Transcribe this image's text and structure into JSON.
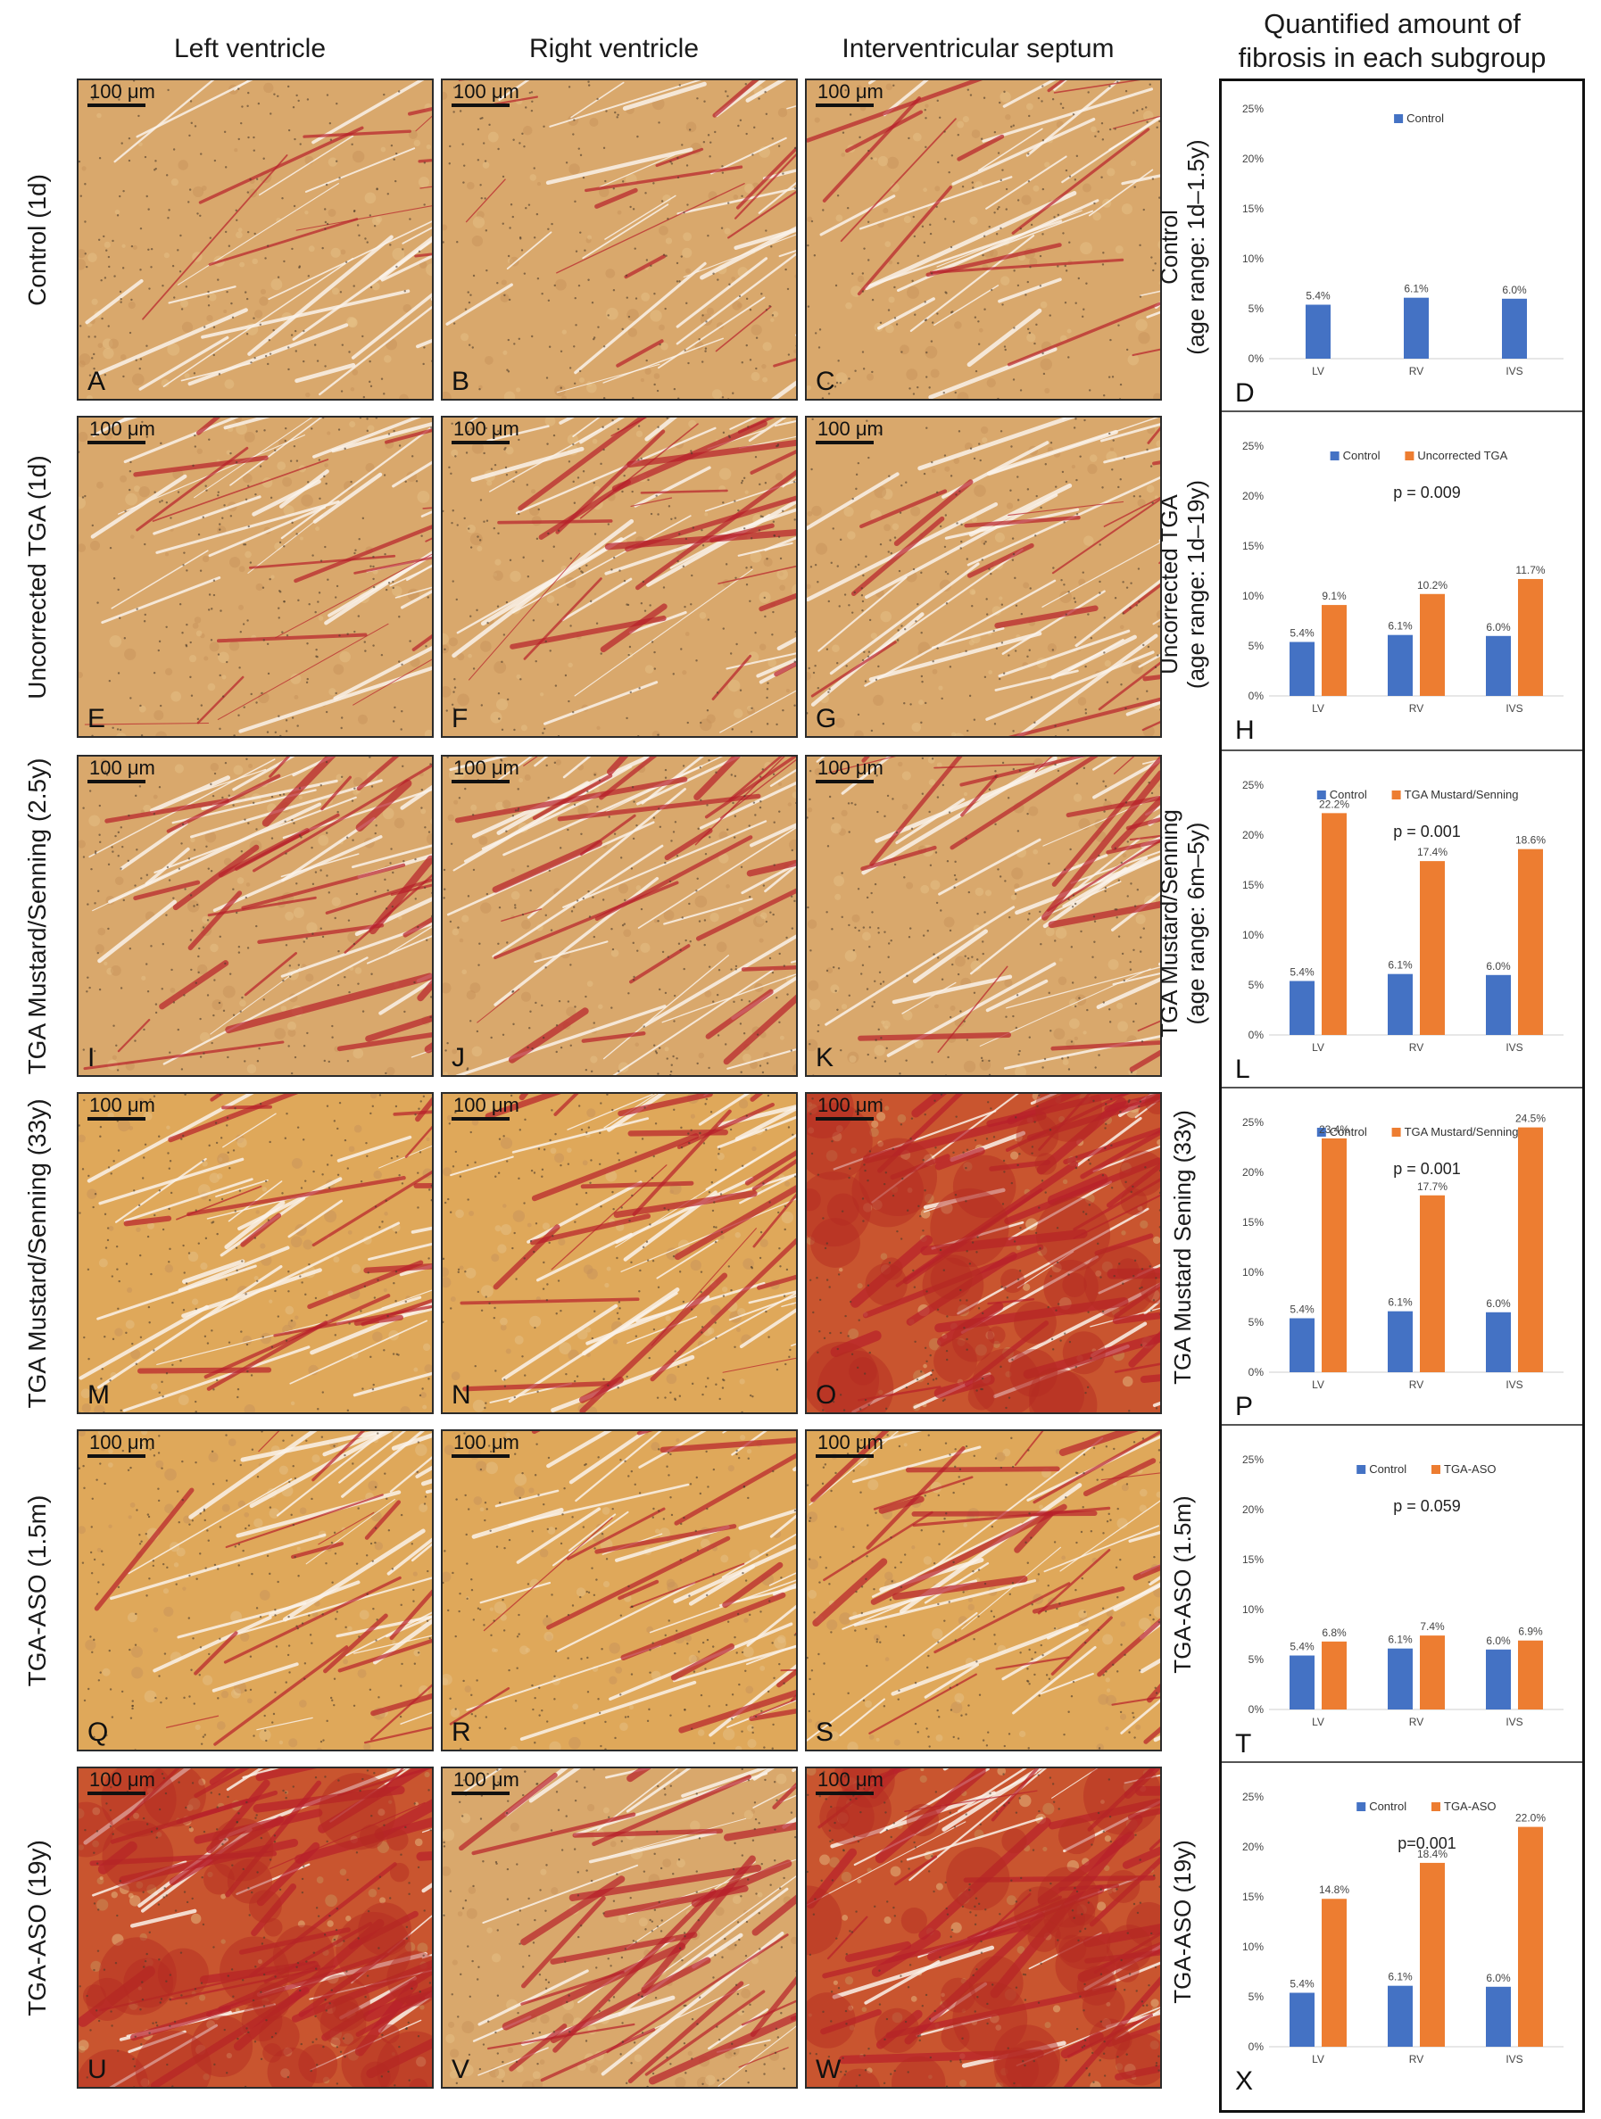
{
  "column_headers": [
    "Left ventricle",
    "Right ventricle",
    "Interventricular septum"
  ],
  "right_header": [
    "Quantified amount of",
    "fibrosis in each subgroup"
  ],
  "scale_bar": "100 μm",
  "rows": [
    {
      "label": "Control (1d)",
      "panels": [
        "A",
        "B",
        "C"
      ],
      "chart_label": [
        "Control",
        "(age range: 1d–1.5y)"
      ],
      "chart_panel": "D"
    },
    {
      "label": "Uncorrected TGA (1d)",
      "panels": [
        "E",
        "F",
        "G"
      ],
      "chart_label": [
        "Uncorrected TGA",
        "(age range: 1d–19y)"
      ],
      "chart_panel": "H"
    },
    {
      "label": "TGA Mustard/Senning (2.5y)",
      "panels": [
        "I",
        "J",
        "K"
      ],
      "chart_label": [
        "TGA Mustard/Senning",
        "(age range: 6m–5y)"
      ],
      "chart_panel": "L"
    },
    {
      "label": "TGA Mustard/Senning (33y)",
      "panels": [
        "M",
        "N",
        "O"
      ],
      "chart_label": [
        "TGA Mustard Sening (33y)"
      ],
      "chart_panel": "P"
    },
    {
      "label": "TGA-ASO (1.5m)",
      "panels": [
        "Q",
        "R",
        "S"
      ],
      "chart_label": [
        "TGA-ASO (1.5m)"
      ],
      "chart_panel": "T"
    },
    {
      "label": "TGA-ASO (19y)",
      "panels": [
        "U",
        "V",
        "W"
      ],
      "chart_label": [
        "TGA-ASO (19y)"
      ],
      "chart_panel": "X"
    }
  ],
  "colors": {
    "control": "#4472C4",
    "comparison": "#ED7D31",
    "tissue": "#d9a566",
    "collagen": "#b8202a"
  },
  "chart_data": [
    {
      "type": "bar",
      "panel": "D",
      "categories": [
        "LV",
        "RV",
        "IVS"
      ],
      "series": [
        {
          "name": "Control",
          "values": [
            5.4,
            6.1,
            6.0
          ],
          "labels": [
            "5.4%",
            "6.1%",
            "6.0%"
          ]
        }
      ],
      "p_value": "",
      "ylim": [
        0,
        25
      ],
      "yticks": [
        "0%",
        "5%",
        "10%",
        "15%",
        "20%",
        "25%"
      ],
      "legend": "top-center"
    },
    {
      "type": "bar",
      "panel": "H",
      "categories": [
        "LV",
        "RV",
        "IVS"
      ],
      "series": [
        {
          "name": "Control",
          "values": [
            5.4,
            6.1,
            6.0
          ],
          "labels": [
            "5.4%",
            "6.1%",
            "6.0%"
          ]
        },
        {
          "name": "Uncorrected TGA",
          "values": [
            9.1,
            10.2,
            11.7
          ],
          "labels": [
            "9.1%",
            "10.2%",
            "11.7%"
          ]
        }
      ],
      "p_value": "p = 0.009",
      "ylim": [
        0,
        25
      ],
      "yticks": [
        "0%",
        "5%",
        "10%",
        "15%",
        "20%",
        "25%"
      ],
      "legend": "top-center"
    },
    {
      "type": "bar",
      "panel": "L",
      "categories": [
        "LV",
        "RV",
        "IVS"
      ],
      "series": [
        {
          "name": "Control",
          "values": [
            5.4,
            6.1,
            6.0
          ],
          "labels": [
            "5.4%",
            "6.1%",
            "6.0%"
          ]
        },
        {
          "name": "TGA Mustard/Senning",
          "values": [
            22.2,
            17.4,
            18.6
          ],
          "labels": [
            "22.2%",
            "17.4%",
            "18.6%"
          ]
        }
      ],
      "p_value": "p = 0.001",
      "ylim": [
        0,
        25
      ],
      "yticks": [
        "0%",
        "5%",
        "10%",
        "15%",
        "20%",
        "25%"
      ],
      "legend": "top-center"
    },
    {
      "type": "bar",
      "panel": "P",
      "categories": [
        "LV",
        "RV",
        "IVS"
      ],
      "series": [
        {
          "name": "Control",
          "values": [
            5.4,
            6.1,
            6.0
          ],
          "labels": [
            "5.4%",
            "6.1%",
            "6.0%"
          ]
        },
        {
          "name": "TGA Mustard/Senning",
          "values": [
            23.4,
            17.7,
            24.5
          ],
          "labels": [
            "23.4%",
            "17.7%",
            "24.5%"
          ]
        }
      ],
      "p_value": "p = 0.001",
      "ylim": [
        0,
        25
      ],
      "yticks": [
        "0%",
        "5%",
        "10%",
        "15%",
        "20%",
        "25%"
      ],
      "legend": "top-center"
    },
    {
      "type": "bar",
      "panel": "T",
      "categories": [
        "LV",
        "RV",
        "IVS"
      ],
      "series": [
        {
          "name": "Control",
          "values": [
            5.4,
            6.1,
            6.0
          ],
          "labels": [
            "5.4%",
            "6.1%",
            "6.0%"
          ]
        },
        {
          "name": "TGA-ASO",
          "values": [
            6.8,
            7.4,
            6.9
          ],
          "labels": [
            "6.8%",
            "7.4%",
            "6.9%"
          ]
        }
      ],
      "p_value": "p = 0.059",
      "ylim": [
        0,
        25
      ],
      "yticks": [
        "0%",
        "5%",
        "10%",
        "15%",
        "20%",
        "25%"
      ],
      "legend": "top-center"
    },
    {
      "type": "bar",
      "panel": "X",
      "categories": [
        "LV",
        "RV",
        "IVS"
      ],
      "series": [
        {
          "name": "Control",
          "values": [
            5.4,
            6.1,
            6.0
          ],
          "labels": [
            "5.4%",
            "6.1%",
            "6.0%"
          ]
        },
        {
          "name": "TGA-ASO",
          "values": [
            14.8,
            18.4,
            22.0
          ],
          "labels": [
            "14.8%",
            "18.4%",
            "22.0%"
          ]
        }
      ],
      "p_value": "p=0.001",
      "ylim": [
        0,
        25
      ],
      "yticks": [
        "0%",
        "5%",
        "10%",
        "15%",
        "20%",
        "25%"
      ],
      "legend": "top-center"
    }
  ]
}
